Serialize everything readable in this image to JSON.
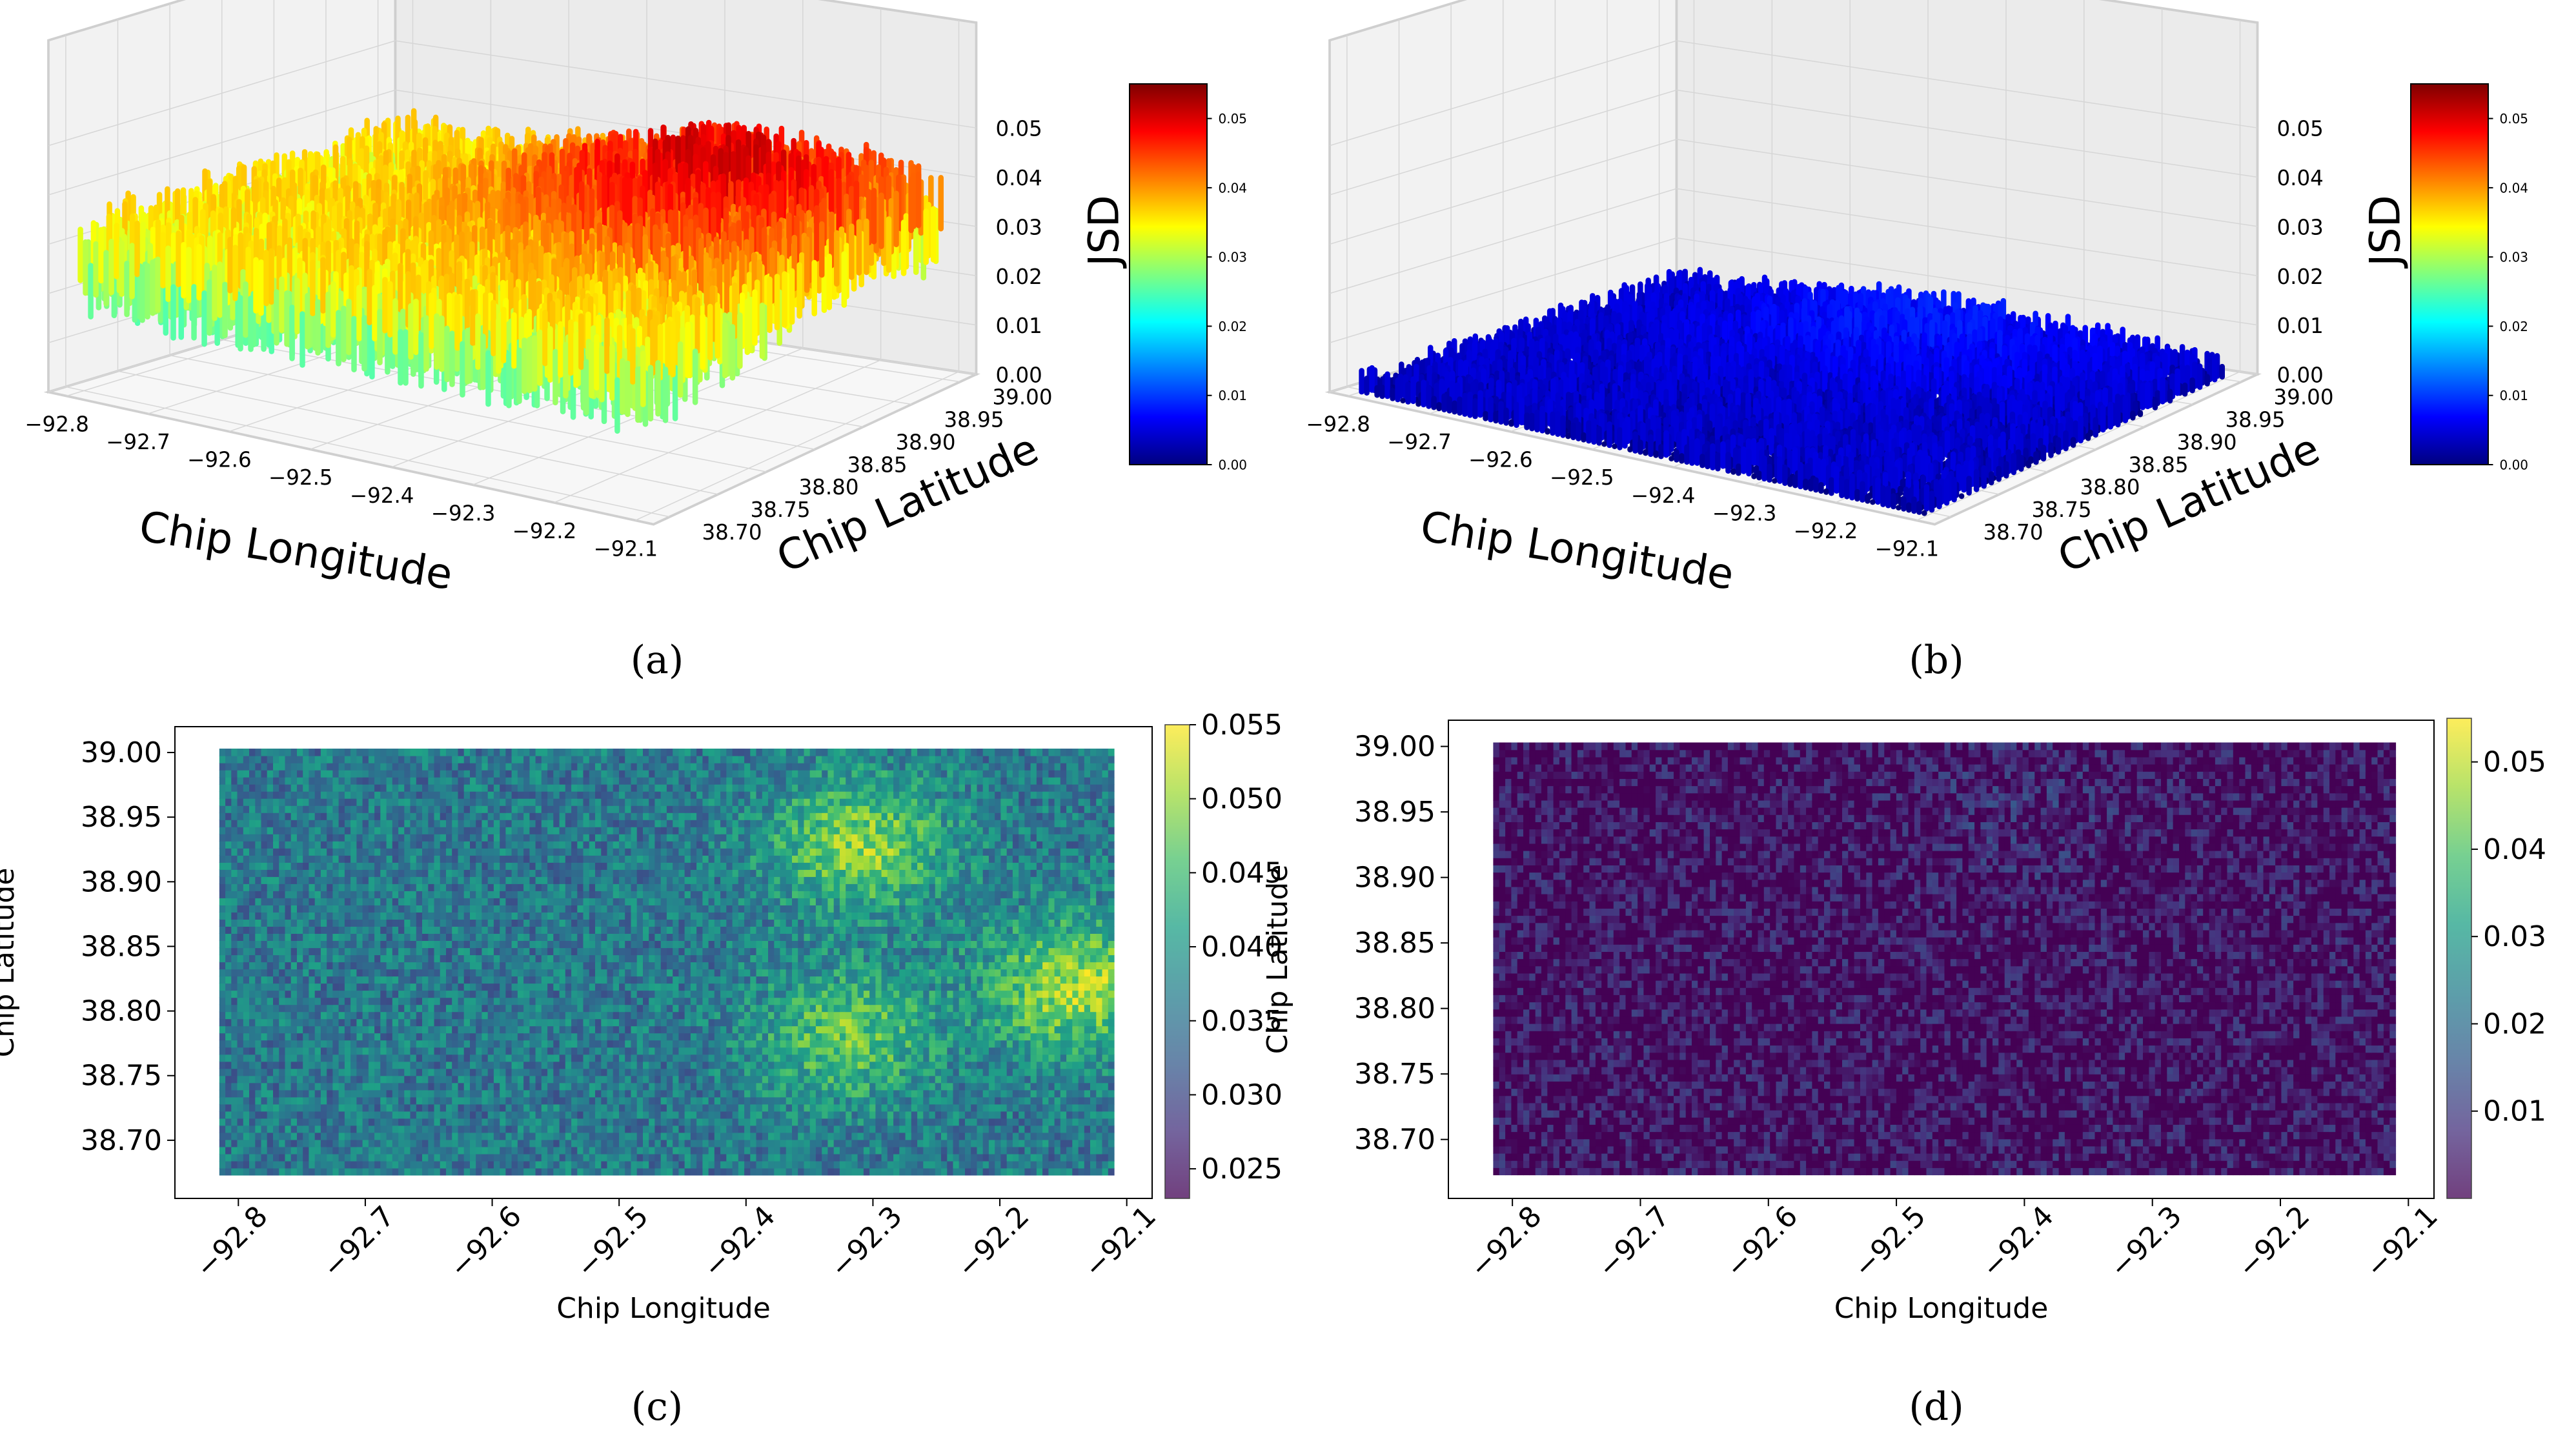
{
  "panel_labels": [
    "(a)",
    "(b)",
    "(c)",
    "(d)"
  ],
  "colors": {
    "jet": [
      "#00007f",
      "#0000ff",
      "#007fff",
      "#00ffff",
      "#7fff7f",
      "#ffff00",
      "#ff7f00",
      "#ff0000",
      "#7f0000"
    ],
    "viridis": [
      "#440154",
      "#46327e",
      "#365c8d",
      "#277f8e",
      "#1fa187",
      "#4ac16d",
      "#a0da39",
      "#fde725"
    ],
    "pane": "#f2f2f2",
    "grid": "#d6d6d6"
  },
  "chart_data": [
    {
      "id": "a",
      "type": "surface3d",
      "panel_label": "(a)",
      "xlabel": "Chip Longitude",
      "ylabel": "Chip Latitude",
      "zlabel": "JSD",
      "x_ticks": [
        "−92.8",
        "−92.7",
        "−92.6",
        "−92.5",
        "−92.4",
        "−92.3",
        "−92.2",
        "−92.1"
      ],
      "y_ticks": [
        "38.70",
        "38.75",
        "38.80",
        "38.85",
        "38.90",
        "38.95",
        "39.00"
      ],
      "z_ticks": [
        "0.00",
        "0.01",
        "0.02",
        "0.03",
        "0.04",
        "0.05"
      ],
      "colorbar_ticks": [
        "0.00",
        "0.01",
        "0.02",
        "0.03",
        "0.04",
        "0.05"
      ],
      "colormap": "jet",
      "xlim": [
        -92.82,
        -92.1
      ],
      "ylim": [
        38.67,
        39.0
      ],
      "zlim": [
        0.0,
        0.055
      ],
      "surface": {
        "base_value": 0.03,
        "hotspot_longitude": -92.3,
        "hotspot_latitude": 38.9,
        "hotspot_value": 0.045,
        "peak_value": 0.053
      }
    },
    {
      "id": "b",
      "type": "surface3d",
      "panel_label": "(b)",
      "xlabel": "Chip Longitude",
      "ylabel": "Chip Latitude",
      "zlabel": "JSD",
      "x_ticks": [
        "−92.8",
        "−92.7",
        "−92.6",
        "−92.5",
        "−92.4",
        "−92.3",
        "−92.2",
        "−92.1"
      ],
      "y_ticks": [
        "38.70",
        "38.75",
        "38.80",
        "38.85",
        "38.90",
        "38.95",
        "39.00"
      ],
      "z_ticks": [
        "0.00",
        "0.01",
        "0.02",
        "0.03",
        "0.04",
        "0.05"
      ],
      "colorbar_ticks": [
        "0.00",
        "0.01",
        "0.02",
        "0.03",
        "0.04",
        "0.05"
      ],
      "colormap": "jet",
      "xlim": [
        -92.82,
        -92.1
      ],
      "ylim": [
        38.67,
        39.0
      ],
      "zlim": [
        0.0,
        0.055
      ],
      "surface": {
        "base_value": 0.002,
        "hotspot_longitude": -92.45,
        "hotspot_latitude": 38.95,
        "hotspot_value": 0.006,
        "peak_value": 0.012
      }
    },
    {
      "id": "c",
      "type": "heatmap",
      "panel_label": "(c)",
      "xlabel": "Chip Longitude",
      "ylabel": "Chip Latitude",
      "x_ticks": [
        "−92.8",
        "−92.7",
        "−92.6",
        "−92.5",
        "−92.4",
        "−92.3",
        "−92.2",
        "−92.1"
      ],
      "y_ticks": [
        "38.70",
        "38.75",
        "38.80",
        "38.85",
        "38.90",
        "38.95",
        "39.00"
      ],
      "colorbar_ticks": [
        "0.025",
        "0.030",
        "0.035",
        "0.040",
        "0.045",
        "0.050",
        "0.055"
      ],
      "colormap": "viridis",
      "xlim": [
        -92.85,
        -92.08
      ],
      "ylim": [
        38.655,
        39.02
      ],
      "data_extent": {
        "lon": [
          -92.815,
          -92.11
        ],
        "lat": [
          38.673,
          39.003
        ]
      },
      "color_range": [
        0.023,
        0.055
      ],
      "field": {
        "base_value": 0.036,
        "hotspots": [
          {
            "lon": -92.31,
            "lat": 38.93,
            "value": 0.049
          },
          {
            "lon": -92.32,
            "lat": 38.78,
            "value": 0.047
          },
          {
            "lon": -92.14,
            "lat": 38.82,
            "value": 0.051
          }
        ]
      }
    },
    {
      "id": "d",
      "type": "heatmap",
      "panel_label": "(d)",
      "xlabel": "Chip Longitude",
      "ylabel": "Chip Latitude",
      "x_ticks": [
        "−92.8",
        "−92.7",
        "−92.6",
        "−92.5",
        "−92.4",
        "−92.3",
        "−92.2",
        "−92.1"
      ],
      "y_ticks": [
        "38.70",
        "38.75",
        "38.80",
        "38.85",
        "38.90",
        "38.95",
        "39.00"
      ],
      "colorbar_ticks": [
        "0.01",
        "0.02",
        "0.03",
        "0.04",
        "0.05"
      ],
      "colormap": "viridis",
      "xlim": [
        -92.85,
        -92.08
      ],
      "ylim": [
        38.655,
        39.02
      ],
      "data_extent": {
        "lon": [
          -92.815,
          -92.11
        ],
        "lat": [
          38.673,
          39.003
        ]
      },
      "color_range": [
        0.0,
        0.055
      ],
      "field": {
        "base_value": 0.002,
        "hotspots": [
          {
            "lon": -92.4,
            "lat": 38.95,
            "value": 0.006
          }
        ]
      }
    }
  ]
}
